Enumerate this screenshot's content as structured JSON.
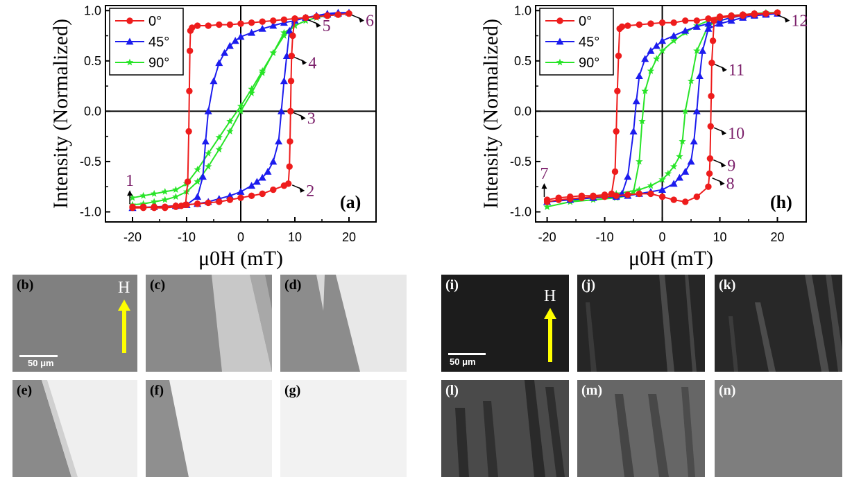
{
  "chart_data": [
    {
      "id": "a",
      "type": "scatter",
      "panel_label": "(a)",
      "xlabel": "μ0H (mT)",
      "ylabel": "Intensity (Normalized)",
      "xlim": [
        -25,
        25
      ],
      "ylim": [
        -1.1,
        1.05
      ],
      "xticks": [
        -20,
        -10,
        0,
        10,
        20
      ],
      "xtick_labels": [
        "-20",
        "-10",
        "0",
        "10",
        "20"
      ],
      "yticks": [
        -1.0,
        -0.5,
        0.0,
        0.5,
        1.0
      ],
      "ytick_labels": [
        "-1.0",
        "-0.5",
        "0.0",
        "0.5",
        "1.0"
      ],
      "legend": "top-left",
      "series": [
        {
          "name": "0°",
          "color": "#ee1c1c",
          "marker": "circle",
          "x": [
            -20,
            -18,
            -16,
            -14,
            -12,
            -11,
            -10.2,
            -9.8,
            -9.6,
            -9.5,
            -9.4,
            -9.3,
            -9,
            -8,
            -6,
            -4,
            -2,
            0,
            2,
            4,
            6,
            8,
            10,
            12,
            14,
            16,
            18,
            20,
            20,
            18,
            16,
            14,
            12,
            10,
            9.6,
            9.4,
            9.3,
            9.2,
            9.1,
            9.0,
            8.8,
            8,
            6,
            4,
            2,
            0,
            -2,
            -4,
            -6,
            -8,
            -10,
            -12,
            -14,
            -16,
            -18,
            -20
          ],
          "y": [
            -0.95,
            -0.95,
            -0.96,
            -0.96,
            -0.95,
            -0.94,
            -0.93,
            -0.7,
            -0.2,
            0.2,
            0.6,
            0.8,
            0.83,
            0.85,
            0.85,
            0.86,
            0.86,
            0.87,
            0.88,
            0.89,
            0.9,
            0.91,
            0.92,
            0.93,
            0.94,
            0.95,
            0.96,
            0.97,
            0.97,
            0.96,
            0.95,
            0.94,
            0.93,
            0.92,
            0.75,
            0.55,
            0.3,
            0.0,
            -0.3,
            -0.55,
            -0.72,
            -0.74,
            -0.78,
            -0.82,
            -0.84,
            -0.86,
            -0.88,
            -0.9,
            -0.91,
            -0.92,
            -0.93,
            -0.94,
            -0.95,
            -0.95,
            -0.96,
            -0.96
          ]
        },
        {
          "name": "45°",
          "color": "#1c1cee",
          "marker": "triangle",
          "x": [
            -20,
            -16,
            -12,
            -10,
            -8,
            -7,
            -6.5,
            -6,
            -5,
            -4,
            -3,
            -2,
            -1,
            0,
            2,
            4,
            6,
            8,
            10,
            12,
            14,
            16,
            18,
            20,
            18,
            16,
            14,
            12,
            10,
            9,
            8.5,
            8,
            7.5,
            7,
            6,
            5,
            4,
            3,
            2,
            0,
            -2,
            -4,
            -6,
            -8,
            -10,
            -12,
            -16,
            -20
          ],
          "y": [
            -0.96,
            -0.95,
            -0.94,
            -0.93,
            -0.85,
            -0.65,
            -0.3,
            0.0,
            0.3,
            0.48,
            0.58,
            0.65,
            0.7,
            0.74,
            0.78,
            0.82,
            0.85,
            0.88,
            0.9,
            0.93,
            0.95,
            0.97,
            0.98,
            0.98,
            0.97,
            0.96,
            0.95,
            0.93,
            0.9,
            0.8,
            0.55,
            0.3,
            0.0,
            -0.3,
            -0.5,
            -0.6,
            -0.66,
            -0.7,
            -0.74,
            -0.8,
            -0.84,
            -0.87,
            -0.9,
            -0.92,
            -0.93,
            -0.94,
            -0.95,
            -0.96
          ]
        },
        {
          "name": "90°",
          "color": "#28e428",
          "marker": "star",
          "x": [
            -20,
            -18,
            -16,
            -14,
            -12,
            -10,
            -8,
            -6,
            -4,
            -2,
            0,
            2,
            4,
            6,
            8,
            10,
            12,
            14,
            16,
            18,
            20,
            18,
            16,
            14,
            12,
            10,
            8,
            6,
            4,
            2,
            0,
            -2,
            -4,
            -6,
            -8,
            -10,
            -12,
            -14,
            -16,
            -18,
            -20
          ],
          "y": [
            -0.86,
            -0.84,
            -0.82,
            -0.8,
            -0.78,
            -0.72,
            -0.58,
            -0.42,
            -0.26,
            -0.1,
            0.05,
            0.22,
            0.4,
            0.58,
            0.75,
            0.85,
            0.9,
            0.93,
            0.95,
            0.96,
            0.97,
            0.96,
            0.95,
            0.93,
            0.9,
            0.85,
            0.78,
            0.58,
            0.38,
            0.18,
            0.0,
            -0.2,
            -0.38,
            -0.55,
            -0.7,
            -0.8,
            -0.85,
            -0.88,
            -0.9,
            -0.92,
            -0.93
          ]
        }
      ],
      "annotations": [
        {
          "text": "1",
          "x": -20.5,
          "y": -0.95
        },
        {
          "text": "2",
          "x": 9.0,
          "y": -0.72
        },
        {
          "text": "3",
          "x": 9.2,
          "y": 0.0
        },
        {
          "text": "4",
          "x": 9.4,
          "y": 0.55
        },
        {
          "text": "5",
          "x": 12.0,
          "y": 0.92
        },
        {
          "text": "6",
          "x": 20.0,
          "y": 0.97
        }
      ]
    },
    {
      "id": "h",
      "type": "scatter",
      "panel_label": "(h)",
      "xlabel": "μ0H (mT)",
      "ylabel": "Intensity (Normalized)",
      "xlim": [
        -22,
        25
      ],
      "ylim": [
        -1.1,
        1.05
      ],
      "xticks": [
        -20,
        -10,
        0,
        10,
        20
      ],
      "xtick_labels": [
        "-20",
        "-10",
        "0",
        "10",
        "20"
      ],
      "yticks": [
        -1.0,
        -0.5,
        0.0,
        0.5,
        1.0
      ],
      "ytick_labels": [
        "-1.0",
        "-0.5",
        "0.0",
        "0.5",
        "1.0"
      ],
      "legend": "top-left",
      "series": [
        {
          "name": "0°",
          "color": "#ee1c1c",
          "marker": "circle",
          "x": [
            -20,
            -18,
            -16,
            -14,
            -12,
            -10,
            -8.8,
            -8.2,
            -8.0,
            -7.8,
            -7.6,
            -7.4,
            -7,
            -6,
            -4,
            -2,
            0,
            2,
            4,
            6,
            8,
            10,
            12,
            14,
            16,
            18,
            20,
            20,
            18,
            16,
            14,
            12,
            10,
            9,
            8.8,
            8.6,
            8.5,
            8.4,
            8.3,
            8.2,
            8,
            6,
            4,
            2,
            0,
            -2,
            -4,
            -6,
            -8,
            -10,
            -12,
            -14,
            -16,
            -18,
            -20
          ],
          "y": [
            -0.88,
            -0.86,
            -0.85,
            -0.84,
            -0.84,
            -0.83,
            -0.82,
            -0.6,
            -0.2,
            0.2,
            0.55,
            0.82,
            0.84,
            0.85,
            0.86,
            0.87,
            0.88,
            0.88,
            0.9,
            0.9,
            0.92,
            0.94,
            0.95,
            0.96,
            0.97,
            0.97,
            0.98,
            0.98,
            0.97,
            0.96,
            0.95,
            0.94,
            0.93,
            0.9,
            0.7,
            0.48,
            0.15,
            -0.15,
            -0.47,
            -0.62,
            -0.75,
            -0.85,
            -0.9,
            -0.88,
            -0.85,
            -0.82,
            -0.82,
            -0.83,
            -0.84,
            -0.85,
            -0.85,
            -0.86,
            -0.87,
            -0.88,
            -0.9
          ]
        },
        {
          "name": "45°",
          "color": "#1c1cee",
          "marker": "triangle",
          "x": [
            -20,
            -16,
            -12,
            -8,
            -7,
            -6,
            -5,
            -4.5,
            -4,
            -3,
            -2,
            -1,
            0,
            2,
            4,
            6,
            8,
            10,
            12,
            14,
            16,
            18,
            20,
            18,
            16,
            14,
            12,
            10,
            8,
            7,
            6.5,
            6,
            5.5,
            5,
            4,
            3,
            2,
            0,
            -2,
            -4,
            -6,
            -8,
            -12,
            -16,
            -20
          ],
          "y": [
            -0.9,
            -0.88,
            -0.86,
            -0.84,
            -0.82,
            -0.65,
            -0.2,
            0.1,
            0.35,
            0.52,
            0.6,
            0.65,
            0.7,
            0.75,
            0.8,
            0.84,
            0.87,
            0.9,
            0.93,
            0.95,
            0.96,
            0.97,
            0.97,
            0.96,
            0.95,
            0.93,
            0.9,
            0.87,
            0.82,
            0.6,
            0.35,
            0.0,
            -0.3,
            -0.5,
            -0.6,
            -0.66,
            -0.72,
            -0.78,
            -0.8,
            -0.82,
            -0.84,
            -0.85,
            -0.86,
            -0.88,
            -0.9
          ]
        },
        {
          "name": "90°",
          "color": "#28e428",
          "marker": "star",
          "x": [
            -20,
            -16,
            -12,
            -8,
            -6,
            -5,
            -4,
            -3.5,
            -3,
            -2,
            -1,
            0,
            2,
            4,
            6,
            8,
            10,
            12,
            14,
            16,
            18,
            20,
            18,
            16,
            14,
            12,
            10,
            8,
            6,
            5,
            4,
            3.5,
            3,
            2,
            1,
            0,
            -2,
            -4,
            -8,
            -12,
            -16,
            -20
          ],
          "y": [
            -0.95,
            -0.9,
            -0.88,
            -0.86,
            -0.84,
            -0.8,
            -0.5,
            -0.1,
            0.2,
            0.4,
            0.52,
            0.6,
            0.7,
            0.78,
            0.85,
            0.9,
            0.93,
            0.95,
            0.96,
            0.97,
            0.98,
            0.98,
            0.97,
            0.96,
            0.95,
            0.93,
            0.9,
            0.85,
            0.6,
            0.3,
            0.0,
            -0.3,
            -0.45,
            -0.55,
            -0.62,
            -0.68,
            -0.74,
            -0.78,
            -0.82,
            -0.85,
            -0.9,
            -0.95
          ]
        }
      ],
      "annotations": [
        {
          "text": "7",
          "x": -20.5,
          "y": -0.88
        },
        {
          "text": "8",
          "x": 8.2,
          "y": -0.65
        },
        {
          "text": "9",
          "x": 8.4,
          "y": -0.47
        },
        {
          "text": "10",
          "x": 8.5,
          "y": -0.15
        },
        {
          "text": "11",
          "x": 8.6,
          "y": 0.48
        },
        {
          "text": "12",
          "x": 19.5,
          "y": 0.97
        }
      ]
    }
  ],
  "images": {
    "left": [
      {
        "label": "(b)",
        "gray": 128,
        "label_style": "dark",
        "scale_bar": "50 μm",
        "field_label": "H"
      },
      {
        "label": "(c)",
        "gray": 150,
        "label_style": "dark"
      },
      {
        "label": "(d)",
        "gray": 160,
        "label_style": "dark"
      },
      {
        "label": "(e)",
        "gray": 215,
        "label_style": "dark"
      },
      {
        "label": "(f)",
        "gray": 220,
        "label_style": "dark"
      },
      {
        "label": "(g)",
        "gray": 232,
        "label_style": "dark"
      }
    ],
    "right": [
      {
        "label": "(i)",
        "gray": 28,
        "label_style": "light",
        "scale_bar": "50 μm",
        "field_label": "H"
      },
      {
        "label": "(j)",
        "gray": 38,
        "label_style": "light"
      },
      {
        "label": "(k)",
        "gray": 40,
        "label_style": "light"
      },
      {
        "label": "(l)",
        "gray": 65,
        "label_style": "light"
      },
      {
        "label": "(m)",
        "gray": 100,
        "label_style": "light"
      },
      {
        "label": "(n)",
        "gray": 128,
        "label_style": "light"
      }
    ]
  },
  "colors": {
    "red": "#ee1c1c",
    "blue": "#1c1cee",
    "green": "#28e428",
    "annotation": "#7b1f6a",
    "arrow": "#ffff00"
  }
}
